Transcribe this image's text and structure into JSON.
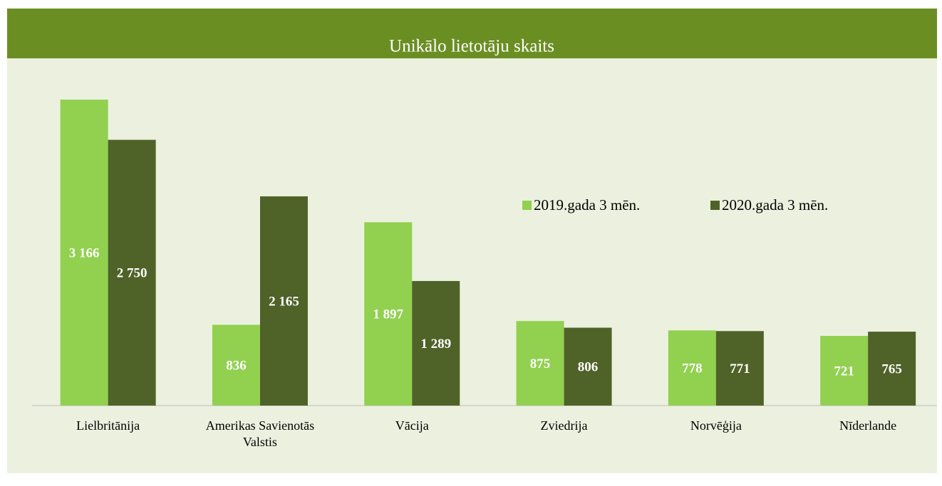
{
  "chart_data": {
    "type": "bar",
    "title": "Unikālo lietotāju skaits",
    "categories": [
      "Lielbritānija",
      "Amerikas Savienotās Valstis",
      "Vācija",
      "Zviedrija",
      "Norvēģija",
      "Nīderlande"
    ],
    "series": [
      {
        "name": "2019.gada 3 mēn.",
        "color": "#92d050",
        "values": [
          3166,
          836,
          1897,
          875,
          778,
          721
        ],
        "value_labels": [
          "3 166",
          "836",
          "1 897",
          "875",
          "778",
          "721"
        ]
      },
      {
        "name": "2020.gada 3 mēn.",
        "color": "#4f6228",
        "values": [
          2750,
          2165,
          1289,
          806,
          771,
          765
        ],
        "value_labels": [
          "2 750",
          "2 165",
          "1 289",
          "806",
          "771",
          "765"
        ]
      }
    ],
    "legend": "right"
  }
}
